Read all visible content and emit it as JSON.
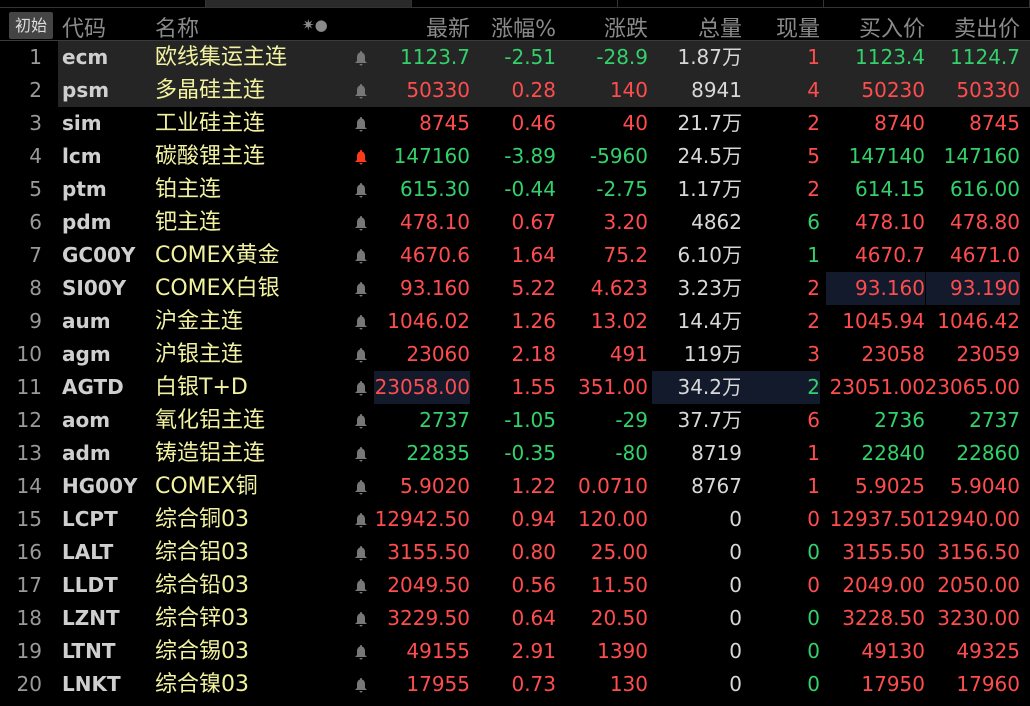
{
  "header": {
    "init_button": "初始",
    "cols": [
      "代码",
      "名称",
      "最新",
      "涨幅%",
      "涨跌",
      "总量",
      "现量",
      "买入价",
      "卖出价"
    ],
    "sort_icons": "✷●"
  },
  "colors": {
    "up": "#ff4d4f",
    "down": "#33d16b",
    "name": "#f2f2a0"
  },
  "rows": [
    {
      "n": "1",
      "code": "ecm",
      "name": "欧线集运主连",
      "last": "1123.7",
      "pct": "-2.51",
      "chg": "-28.9",
      "vol": "1.87",
      "vol_unit": "万",
      "cur": "1",
      "bid": "1123.4",
      "ask": "1124.7",
      "d": "g",
      "cd": "r",
      "hl": true
    },
    {
      "n": "2",
      "code": "psm",
      "name": "多晶硅主连",
      "last": "50330",
      "pct": "0.28",
      "chg": "140",
      "vol": "8941",
      "vol_unit": "",
      "cur": "4",
      "bid": "50230",
      "ask": "50330",
      "d": "r",
      "cd": "r",
      "hl": true
    },
    {
      "n": "3",
      "code": "sim",
      "name": "工业硅主连",
      "last": "8745",
      "pct": "0.46",
      "chg": "40",
      "vol": "21.7",
      "vol_unit": "万",
      "cur": "2",
      "bid": "8740",
      "ask": "8745",
      "d": "r",
      "cd": "r"
    },
    {
      "n": "4",
      "code": "lcm",
      "name": "碳酸锂主连",
      "last": "147160",
      "pct": "-3.89",
      "chg": "-5960",
      "vol": "24.5",
      "vol_unit": "万",
      "cur": "5",
      "bid": "147140",
      "ask": "147160",
      "d": "g",
      "cd": "r",
      "alert": true
    },
    {
      "n": "5",
      "code": "ptm",
      "name": "铂主连",
      "last": "615.30",
      "pct": "-0.44",
      "chg": "-2.75",
      "vol": "1.17",
      "vol_unit": "万",
      "cur": "2",
      "bid": "614.15",
      "ask": "616.00",
      "d": "g",
      "cd": "r"
    },
    {
      "n": "6",
      "code": "pdm",
      "name": "钯主连",
      "last": "478.10",
      "pct": "0.67",
      "chg": "3.20",
      "vol": "4862",
      "vol_unit": "",
      "cur": "6",
      "bid": "478.10",
      "ask": "478.80",
      "d": "r",
      "cd": "g"
    },
    {
      "n": "7",
      "code": "GC00Y",
      "name": "COMEX黄金",
      "last": "4670.6",
      "pct": "1.64",
      "chg": "75.2",
      "vol": "6.10",
      "vol_unit": "万",
      "cur": "1",
      "bid": "4670.7",
      "ask": "4671.0",
      "d": "r",
      "cd": "g"
    },
    {
      "n": "8",
      "code": "SI00Y",
      "name": "COMEX白银",
      "last": "93.160",
      "pct": "5.22",
      "chg": "4.623",
      "vol": "3.23",
      "vol_unit": "万",
      "cur": "2",
      "bid": "93.160",
      "ask": "93.190",
      "d": "r",
      "cd": "r",
      "boxbidask": true
    },
    {
      "n": "9",
      "code": "aum",
      "name": "沪金主连",
      "last": "1046.02",
      "pct": "1.26",
      "chg": "13.02",
      "vol": "14.4",
      "vol_unit": "万",
      "cur": "2",
      "bid": "1045.94",
      "ask": "1046.42",
      "d": "r",
      "cd": "r"
    },
    {
      "n": "10",
      "code": "agm",
      "name": "沪银主连",
      "last": "23060",
      "pct": "2.18",
      "chg": "491",
      "vol": "119",
      "vol_unit": "万",
      "cur": "3",
      "bid": "23058",
      "ask": "23059",
      "d": "r",
      "cd": "r"
    },
    {
      "n": "11",
      "code": "AGTD",
      "name": "白银T+D",
      "last": "23058.00",
      "pct": "1.55",
      "chg": "351.00",
      "vol": "34.2",
      "vol_unit": "万",
      "cur": "2",
      "bid": "23051.00",
      "ask": "23065.00",
      "d": "r",
      "cd": "g",
      "boxlast": true
    },
    {
      "n": "12",
      "code": "aom",
      "name": "氧化铝主连",
      "last": "2737",
      "pct": "-1.05",
      "chg": "-29",
      "vol": "37.7",
      "vol_unit": "万",
      "cur": "6",
      "bid": "2736",
      "ask": "2737",
      "d": "g",
      "cd": "r"
    },
    {
      "n": "13",
      "code": "adm",
      "name": "铸造铝主连",
      "last": "22835",
      "pct": "-0.35",
      "chg": "-80",
      "vol": "8719",
      "vol_unit": "",
      "cur": "1",
      "bid": "22840",
      "ask": "22860",
      "d": "g",
      "cd": "r"
    },
    {
      "n": "14",
      "code": "HG00Y",
      "name": "COMEX铜",
      "last": "5.9020",
      "pct": "1.22",
      "chg": "0.0710",
      "vol": "8767",
      "vol_unit": "",
      "cur": "1",
      "bid": "5.9025",
      "ask": "5.9040",
      "d": "r",
      "cd": "r"
    },
    {
      "n": "15",
      "code": "LCPT",
      "name": "综合铜03",
      "last": "12942.50",
      "pct": "0.94",
      "chg": "120.00",
      "vol": "0",
      "vol_unit": "",
      "cur": "0",
      "bid": "12937.50",
      "ask": "12940.00",
      "d": "r",
      "cd": "r"
    },
    {
      "n": "16",
      "code": "LALT",
      "name": "综合铝03",
      "last": "3155.50",
      "pct": "0.80",
      "chg": "25.00",
      "vol": "0",
      "vol_unit": "",
      "cur": "0",
      "bid": "3155.50",
      "ask": "3156.50",
      "d": "r",
      "cd": "g"
    },
    {
      "n": "17",
      "code": "LLDT",
      "name": "综合铅03",
      "last": "2049.50",
      "pct": "0.56",
      "chg": "11.50",
      "vol": "0",
      "vol_unit": "",
      "cur": "0",
      "bid": "2049.00",
      "ask": "2050.00",
      "d": "r",
      "cd": "r"
    },
    {
      "n": "18",
      "code": "LZNT",
      "name": "综合锌03",
      "last": "3229.50",
      "pct": "0.64",
      "chg": "20.50",
      "vol": "0",
      "vol_unit": "",
      "cur": "0",
      "bid": "3228.50",
      "ask": "3230.00",
      "d": "r",
      "cd": "g"
    },
    {
      "n": "19",
      "code": "LTNT",
      "name": "综合锡03",
      "last": "49155",
      "pct": "2.91",
      "chg": "1390",
      "vol": "0",
      "vol_unit": "",
      "cur": "0",
      "bid": "49130",
      "ask": "49325",
      "d": "r",
      "cd": "g"
    },
    {
      "n": "20",
      "code": "LNKT",
      "name": "综合镍03",
      "last": "17955",
      "pct": "0.73",
      "chg": "130",
      "vol": "0",
      "vol_unit": "",
      "cur": "0",
      "bid": "17950",
      "ask": "17960",
      "d": "r",
      "cd": "g"
    }
  ]
}
